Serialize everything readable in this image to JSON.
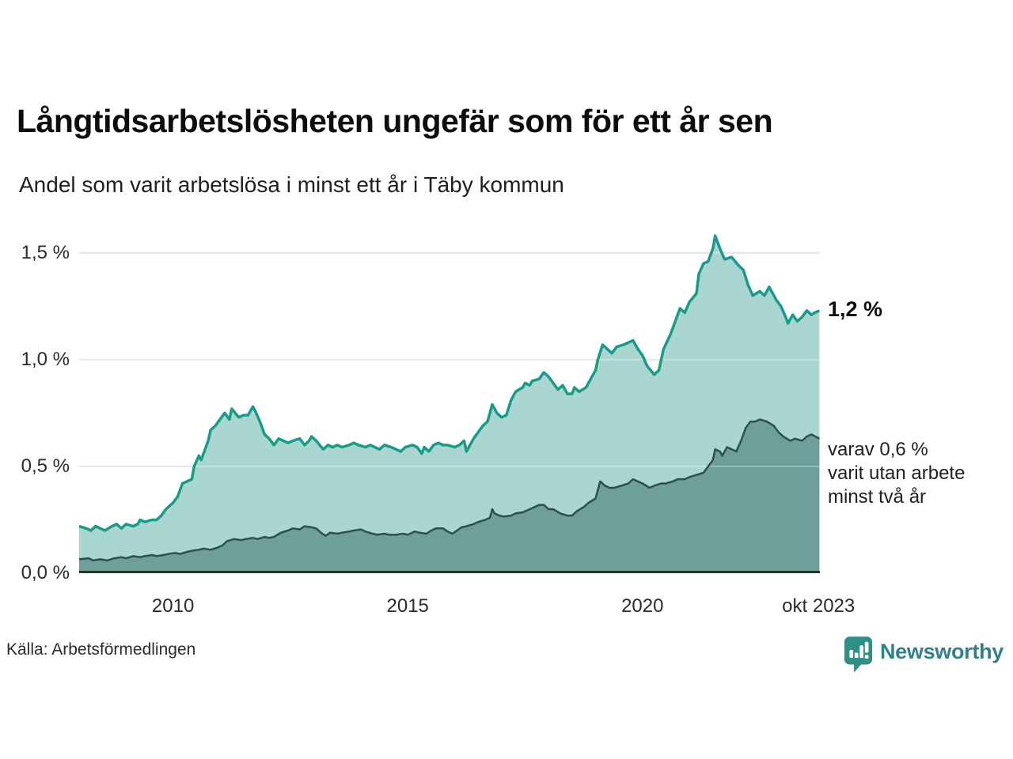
{
  "header": {
    "title": "Långtidsarbetslösheten ungefär som för ett år sen",
    "subtitle": "Andel som varit arbetslösa i minst ett år i Täby kommun"
  },
  "chart_data": {
    "type": "area",
    "title": "Långtidsarbetslösheten ungefär som för ett år sen",
    "subtitle": "Andel som varit arbetslösa i minst ett år i Täby kommun",
    "unit": "%",
    "grid": true,
    "legend_position": "end-of-line-labels",
    "xlim": [
      2008.0,
      2023.78
    ],
    "ylim": [
      0,
      1.64
    ],
    "x_ticks": [
      "2010",
      "2015",
      "2020",
      "okt 2023"
    ],
    "x_tick_years": [
      2010,
      2015,
      2020,
      2023.75
    ],
    "y_ticks": [
      "0,0 %",
      "0,5 %",
      "1,0 %",
      "1,5 %"
    ],
    "y_tick_values": [
      0,
      0.5,
      1.0,
      1.5
    ],
    "colors": {
      "gridline": "#d9dadc",
      "axis_line": "#26332f",
      "background": "#ffffff"
    },
    "series": [
      {
        "name": "Andel som varit arbetslösa i minst ett år",
        "line_color": "#1b998b",
        "fill_color": "#a9d6d0",
        "end_label": "1,2 %",
        "end_value": 1.2,
        "points": [
          [
            2008.0,
            0.22
          ],
          [
            2008.15,
            0.21
          ],
          [
            2008.25,
            0.2
          ],
          [
            2008.35,
            0.22
          ],
          [
            2008.45,
            0.21
          ],
          [
            2008.55,
            0.2
          ],
          [
            2008.7,
            0.22
          ],
          [
            2008.8,
            0.23
          ],
          [
            2008.9,
            0.21
          ],
          [
            2009.0,
            0.23
          ],
          [
            2009.15,
            0.22
          ],
          [
            2009.25,
            0.23
          ],
          [
            2009.3,
            0.25
          ],
          [
            2009.4,
            0.24
          ],
          [
            2009.55,
            0.25
          ],
          [
            2009.65,
            0.25
          ],
          [
            2009.75,
            0.27
          ],
          [
            2009.85,
            0.3
          ],
          [
            2010.0,
            0.33
          ],
          [
            2010.1,
            0.36
          ],
          [
            2010.2,
            0.42
          ],
          [
            2010.3,
            0.43
          ],
          [
            2010.4,
            0.44
          ],
          [
            2010.45,
            0.5
          ],
          [
            2010.55,
            0.55
          ],
          [
            2010.6,
            0.53
          ],
          [
            2010.75,
            0.62
          ],
          [
            2010.8,
            0.67
          ],
          [
            2010.9,
            0.69
          ],
          [
            2011.0,
            0.72
          ],
          [
            2011.1,
            0.75
          ],
          [
            2011.2,
            0.72
          ],
          [
            2011.25,
            0.77
          ],
          [
            2011.4,
            0.73
          ],
          [
            2011.5,
            0.74
          ],
          [
            2011.6,
            0.74
          ],
          [
            2011.7,
            0.78
          ],
          [
            2011.75,
            0.76
          ],
          [
            2011.85,
            0.71
          ],
          [
            2011.95,
            0.65
          ],
          [
            2012.05,
            0.63
          ],
          [
            2012.15,
            0.6
          ],
          [
            2012.25,
            0.63
          ],
          [
            2012.35,
            0.62
          ],
          [
            2012.45,
            0.61
          ],
          [
            2012.55,
            0.62
          ],
          [
            2012.7,
            0.63
          ],
          [
            2012.8,
            0.6
          ],
          [
            2012.9,
            0.62
          ],
          [
            2012.95,
            0.64
          ],
          [
            2013.05,
            0.62
          ],
          [
            2013.2,
            0.58
          ],
          [
            2013.3,
            0.6
          ],
          [
            2013.4,
            0.59
          ],
          [
            2013.5,
            0.6
          ],
          [
            2013.6,
            0.59
          ],
          [
            2013.75,
            0.6
          ],
          [
            2013.85,
            0.61
          ],
          [
            2013.95,
            0.6
          ],
          [
            2014.1,
            0.59
          ],
          [
            2014.2,
            0.6
          ],
          [
            2014.3,
            0.59
          ],
          [
            2014.4,
            0.58
          ],
          [
            2014.5,
            0.6
          ],
          [
            2014.65,
            0.59
          ],
          [
            2014.75,
            0.58
          ],
          [
            2014.85,
            0.57
          ],
          [
            2014.95,
            0.59
          ],
          [
            2015.1,
            0.6
          ],
          [
            2015.2,
            0.59
          ],
          [
            2015.3,
            0.56
          ],
          [
            2015.35,
            0.59
          ],
          [
            2015.45,
            0.57
          ],
          [
            2015.55,
            0.6
          ],
          [
            2015.65,
            0.61
          ],
          [
            2015.75,
            0.6
          ],
          [
            2015.85,
            0.6
          ],
          [
            2016.0,
            0.59
          ],
          [
            2016.1,
            0.6
          ],
          [
            2016.2,
            0.62
          ],
          [
            2016.25,
            0.57
          ],
          [
            2016.4,
            0.63
          ],
          [
            2016.5,
            0.66
          ],
          [
            2016.6,
            0.69
          ],
          [
            2016.7,
            0.71
          ],
          [
            2016.8,
            0.79
          ],
          [
            2016.9,
            0.75
          ],
          [
            2017.0,
            0.73
          ],
          [
            2017.1,
            0.74
          ],
          [
            2017.2,
            0.81
          ],
          [
            2017.3,
            0.85
          ],
          [
            2017.45,
            0.87
          ],
          [
            2017.5,
            0.89
          ],
          [
            2017.6,
            0.88
          ],
          [
            2017.65,
            0.9
          ],
          [
            2017.8,
            0.91
          ],
          [
            2017.9,
            0.94
          ],
          [
            2018.0,
            0.92
          ],
          [
            2018.1,
            0.89
          ],
          [
            2018.2,
            0.86
          ],
          [
            2018.3,
            0.88
          ],
          [
            2018.4,
            0.84
          ],
          [
            2018.5,
            0.84
          ],
          [
            2018.55,
            0.87
          ],
          [
            2018.65,
            0.85
          ],
          [
            2018.8,
            0.87
          ],
          [
            2018.9,
            0.91
          ],
          [
            2019.0,
            0.95
          ],
          [
            2019.05,
            1.0
          ],
          [
            2019.15,
            1.07
          ],
          [
            2019.25,
            1.05
          ],
          [
            2019.35,
            1.03
          ],
          [
            2019.45,
            1.06
          ],
          [
            2019.6,
            1.07
          ],
          [
            2019.7,
            1.08
          ],
          [
            2019.8,
            1.09
          ],
          [
            2019.9,
            1.05
          ],
          [
            2020.0,
            1.02
          ],
          [
            2020.1,
            0.97
          ],
          [
            2020.25,
            0.93
          ],
          [
            2020.35,
            0.95
          ],
          [
            2020.45,
            1.05
          ],
          [
            2020.6,
            1.12
          ],
          [
            2020.7,
            1.18
          ],
          [
            2020.8,
            1.24
          ],
          [
            2020.9,
            1.22
          ],
          [
            2021.0,
            1.27
          ],
          [
            2021.15,
            1.31
          ],
          [
            2021.2,
            1.4
          ],
          [
            2021.3,
            1.45
          ],
          [
            2021.4,
            1.46
          ],
          [
            2021.5,
            1.52
          ],
          [
            2021.55,
            1.58
          ],
          [
            2021.65,
            1.52
          ],
          [
            2021.75,
            1.47
          ],
          [
            2021.9,
            1.48
          ],
          [
            2022.05,
            1.44
          ],
          [
            2022.15,
            1.42
          ],
          [
            2022.25,
            1.35
          ],
          [
            2022.35,
            1.3
          ],
          [
            2022.5,
            1.32
          ],
          [
            2022.6,
            1.3
          ],
          [
            2022.7,
            1.34
          ],
          [
            2022.85,
            1.28
          ],
          [
            2022.95,
            1.25
          ],
          [
            2023.05,
            1.2
          ],
          [
            2023.1,
            1.17
          ],
          [
            2023.2,
            1.21
          ],
          [
            2023.3,
            1.18
          ],
          [
            2023.4,
            1.2
          ],
          [
            2023.5,
            1.23
          ],
          [
            2023.6,
            1.21
          ],
          [
            2023.67,
            1.22
          ],
          [
            2023.77,
            1.23
          ]
        ]
      },
      {
        "name": "varav varit utan arbete minst två år",
        "line_color": "#2e4f4b",
        "fill_color": "#6f9f9a",
        "end_label": "varav 0,6 %\nvarit utan arbete\nminst två år",
        "end_value": 0.6,
        "points": [
          [
            2008.0,
            0.065
          ],
          [
            2008.2,
            0.07
          ],
          [
            2008.3,
            0.06
          ],
          [
            2008.45,
            0.065
          ],
          [
            2008.6,
            0.06
          ],
          [
            2008.75,
            0.07
          ],
          [
            2008.9,
            0.075
          ],
          [
            2009.0,
            0.07
          ],
          [
            2009.15,
            0.08
          ],
          [
            2009.3,
            0.075
          ],
          [
            2009.4,
            0.08
          ],
          [
            2009.55,
            0.085
          ],
          [
            2009.65,
            0.08
          ],
          [
            2009.8,
            0.085
          ],
          [
            2009.9,
            0.09
          ],
          [
            2010.05,
            0.095
          ],
          [
            2010.15,
            0.09
          ],
          [
            2010.3,
            0.1
          ],
          [
            2010.4,
            0.105
          ],
          [
            2010.55,
            0.11
          ],
          [
            2010.65,
            0.115
          ],
          [
            2010.8,
            0.11
          ],
          [
            2010.95,
            0.12
          ],
          [
            2011.05,
            0.13
          ],
          [
            2011.15,
            0.15
          ],
          [
            2011.3,
            0.16
          ],
          [
            2011.45,
            0.155
          ],
          [
            2011.55,
            0.16
          ],
          [
            2011.7,
            0.165
          ],
          [
            2011.8,
            0.16
          ],
          [
            2011.95,
            0.17
          ],
          [
            2012.05,
            0.165
          ],
          [
            2012.15,
            0.17
          ],
          [
            2012.3,
            0.19
          ],
          [
            2012.45,
            0.2
          ],
          [
            2012.55,
            0.21
          ],
          [
            2012.7,
            0.205
          ],
          [
            2012.8,
            0.22
          ],
          [
            2012.95,
            0.215
          ],
          [
            2013.05,
            0.21
          ],
          [
            2013.15,
            0.19
          ],
          [
            2013.25,
            0.175
          ],
          [
            2013.35,
            0.19
          ],
          [
            2013.5,
            0.185
          ],
          [
            2013.6,
            0.19
          ],
          [
            2013.75,
            0.195
          ],
          [
            2013.85,
            0.2
          ],
          [
            2014.0,
            0.205
          ],
          [
            2014.1,
            0.195
          ],
          [
            2014.25,
            0.185
          ],
          [
            2014.35,
            0.18
          ],
          [
            2014.5,
            0.185
          ],
          [
            2014.6,
            0.18
          ],
          [
            2014.75,
            0.18
          ],
          [
            2014.9,
            0.185
          ],
          [
            2015.0,
            0.18
          ],
          [
            2015.15,
            0.195
          ],
          [
            2015.25,
            0.19
          ],
          [
            2015.4,
            0.185
          ],
          [
            2015.5,
            0.2
          ],
          [
            2015.6,
            0.21
          ],
          [
            2015.75,
            0.21
          ],
          [
            2015.85,
            0.195
          ],
          [
            2015.95,
            0.185
          ],
          [
            2016.05,
            0.2
          ],
          [
            2016.15,
            0.215
          ],
          [
            2016.25,
            0.22
          ],
          [
            2016.4,
            0.23
          ],
          [
            2016.5,
            0.24
          ],
          [
            2016.65,
            0.25
          ],
          [
            2016.75,
            0.26
          ],
          [
            2016.8,
            0.3
          ],
          [
            2016.85,
            0.28
          ],
          [
            2016.95,
            0.27
          ],
          [
            2017.05,
            0.265
          ],
          [
            2017.2,
            0.27
          ],
          [
            2017.3,
            0.28
          ],
          [
            2017.45,
            0.285
          ],
          [
            2017.6,
            0.3
          ],
          [
            2017.7,
            0.31
          ],
          [
            2017.8,
            0.32
          ],
          [
            2017.9,
            0.32
          ],
          [
            2018.0,
            0.3
          ],
          [
            2018.1,
            0.3
          ],
          [
            2018.25,
            0.28
          ],
          [
            2018.4,
            0.27
          ],
          [
            2018.5,
            0.27
          ],
          [
            2018.6,
            0.29
          ],
          [
            2018.75,
            0.31
          ],
          [
            2018.85,
            0.33
          ],
          [
            2019.0,
            0.35
          ],
          [
            2019.1,
            0.43
          ],
          [
            2019.2,
            0.41
          ],
          [
            2019.3,
            0.4
          ],
          [
            2019.4,
            0.4
          ],
          [
            2019.55,
            0.41
          ],
          [
            2019.7,
            0.42
          ],
          [
            2019.8,
            0.44
          ],
          [
            2019.9,
            0.43
          ],
          [
            2020.0,
            0.42
          ],
          [
            2020.15,
            0.4
          ],
          [
            2020.25,
            0.41
          ],
          [
            2020.4,
            0.42
          ],
          [
            2020.5,
            0.42
          ],
          [
            2020.65,
            0.43
          ],
          [
            2020.75,
            0.44
          ],
          [
            2020.9,
            0.44
          ],
          [
            2021.0,
            0.45
          ],
          [
            2021.15,
            0.46
          ],
          [
            2021.3,
            0.47
          ],
          [
            2021.4,
            0.5
          ],
          [
            2021.5,
            0.53
          ],
          [
            2021.55,
            0.58
          ],
          [
            2021.65,
            0.57
          ],
          [
            2021.7,
            0.55
          ],
          [
            2021.8,
            0.59
          ],
          [
            2021.9,
            0.58
          ],
          [
            2022.0,
            0.57
          ],
          [
            2022.1,
            0.62
          ],
          [
            2022.2,
            0.68
          ],
          [
            2022.3,
            0.71
          ],
          [
            2022.4,
            0.71
          ],
          [
            2022.5,
            0.72
          ],
          [
            2022.65,
            0.71
          ],
          [
            2022.8,
            0.69
          ],
          [
            2022.9,
            0.66
          ],
          [
            2023.0,
            0.64
          ],
          [
            2023.15,
            0.62
          ],
          [
            2023.25,
            0.63
          ],
          [
            2023.4,
            0.62
          ],
          [
            2023.5,
            0.64
          ],
          [
            2023.6,
            0.65
          ],
          [
            2023.77,
            0.63
          ]
        ]
      }
    ]
  },
  "annotations": {
    "upper": "1,2 %",
    "lower": "varav 0,6 %\nvarit utan arbete\nminst två år"
  },
  "source": {
    "label": "Källa: Arbetsförmedlingen"
  },
  "branding": {
    "name": "Newsworthy",
    "mark_color": "#2e9187",
    "text_color": "#31808b"
  }
}
